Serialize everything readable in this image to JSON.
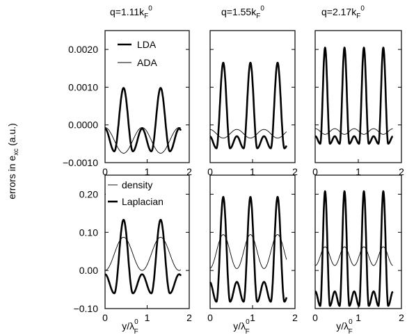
{
  "figure": {
    "ylabel": "errors in e",
    "ylabel_sub": "xc",
    "ylabel_unit": " (a.u.)",
    "xlabel_main": "y/λ",
    "xlabel_sup": "0",
    "xlabel_sub": "F"
  },
  "columns": [
    {
      "title": "q=1.11k",
      "sub": "F",
      "sup": "0"
    },
    {
      "title": "q=1.55k",
      "sub": "F",
      "sup": "0"
    },
    {
      "title": "q=2.17k",
      "sub": "F",
      "sup": "0"
    }
  ],
  "chart_data": [
    {
      "type": "line",
      "row": 0,
      "col": 0,
      "xlim": [
        0,
        1.8
      ],
      "ylim": [
        -0.001,
        0.0025
      ],
      "yticks": [
        "0.0020",
        "0.0010",
        "0.0000",
        "−0.0010"
      ],
      "ytick_values": [
        0.002,
        0.001,
        0.0,
        -0.001
      ],
      "xticks": [
        "0",
        "1",
        "2"
      ],
      "legend": {
        "position": "top-right",
        "entries": [
          "LDA",
          "ADA"
        ]
      },
      "series": [
        {
          "name": "LDA",
          "style": "thick",
          "y0": -5e-05,
          "peaks": [
            {
              "x": 0.44,
              "y": 0.00098
            },
            {
              "x": 1.32,
              "y": 0.00098
            }
          ],
          "troughs": [
            {
              "x": 0.2,
              "y": -0.0007
            },
            {
              "x": 0.68,
              "y": -0.0007
            },
            {
              "x": 1.08,
              "y": -0.0007
            },
            {
              "x": 1.56,
              "y": -0.0007
            }
          ],
          "local_max": [
            {
              "x": 0.88,
              "y": -0.0001
            }
          ]
        },
        {
          "name": "ADA",
          "style": "thin",
          "min_points": [
            {
              "x": 0.44,
              "y": -0.00075
            },
            {
              "x": 1.32,
              "y": -0.00075
            }
          ],
          "max_points": [
            {
              "x": 0.0,
              "y": -0.0001
            },
            {
              "x": 0.88,
              "y": -7e-05
            },
            {
              "x": 1.76,
              "y": -0.0001
            }
          ]
        }
      ]
    },
    {
      "type": "line",
      "row": 0,
      "col": 1,
      "xlim": [
        0,
        1.8
      ],
      "ylim": [
        -0.001,
        0.0025
      ],
      "xticks": [
        "0",
        "1",
        "2"
      ],
      "series": [
        {
          "name": "LDA",
          "style": "thick",
          "peaks": [
            {
              "x": 0.31,
              "y": 0.00165
            },
            {
              "x": 0.95,
              "y": 0.00165
            },
            {
              "x": 1.58,
              "y": 0.00165
            }
          ],
          "trough_y": -0.00062,
          "local_max_y": -0.0003
        },
        {
          "name": "ADA",
          "style": "thin",
          "range": [
            -0.00035,
            -0.00012
          ]
        }
      ]
    },
    {
      "type": "line",
      "row": 0,
      "col": 2,
      "xlim": [
        0,
        1.8
      ],
      "ylim": [
        -0.001,
        0.0025
      ],
      "xticks": [
        "0",
        "1",
        "2"
      ],
      "series": [
        {
          "name": "LDA",
          "style": "thick",
          "peaks": [
            {
              "x": 0.23,
              "y": 0.00205
            },
            {
              "x": 0.68,
              "y": 0.00205
            },
            {
              "x": 1.14,
              "y": 0.00205
            },
            {
              "x": 1.6,
              "y": 0.00205
            }
          ],
          "trough_y": -0.0005,
          "local_max_y": -0.0003
        },
        {
          "name": "ADA",
          "style": "thin",
          "range": [
            -0.00025,
            -0.0001
          ]
        }
      ]
    },
    {
      "type": "line",
      "row": 1,
      "col": 0,
      "xlim": [
        0,
        1.8
      ],
      "ylim": [
        -0.1,
        0.25
      ],
      "yticks": [
        "0.20",
        "0.10",
        "0.00",
        "−0.10"
      ],
      "ytick_values": [
        0.2,
        0.1,
        0.0,
        -0.1
      ],
      "xticks": [
        "0",
        "1",
        "2"
      ],
      "legend": {
        "position": "top-left",
        "entries": [
          "density",
          "Laplacian"
        ]
      },
      "series": [
        {
          "name": "Laplacian",
          "style": "thick",
          "peaks": [
            {
              "x": 0.44,
              "y": 0.133
            },
            {
              "x": 1.32,
              "y": 0.133
            }
          ],
          "trough_y": -0.06,
          "local_max": [
            {
              "x": 0.88,
              "y": -0.01
            }
          ]
        },
        {
          "name": "density",
          "style": "thin",
          "max_y": 0.087,
          "min_y": 0.0
        }
      ]
    },
    {
      "type": "line",
      "row": 1,
      "col": 1,
      "xlim": [
        0,
        1.8
      ],
      "ylim": [
        -0.1,
        0.25
      ],
      "xticks": [
        "0",
        "1",
        "2"
      ],
      "series": [
        {
          "name": "Laplacian",
          "style": "thick",
          "peaks": [
            {
              "x": 0.31,
              "y": 0.193
            },
            {
              "x": 0.95,
              "y": 0.193
            },
            {
              "x": 1.58,
              "y": 0.193
            }
          ],
          "trough_y": -0.082,
          "local_max_y": -0.03
        },
        {
          "name": "density",
          "style": "thin",
          "max_y": 0.094,
          "min_y": 0.005
        }
      ]
    },
    {
      "type": "line",
      "row": 1,
      "col": 2,
      "xlim": [
        0,
        1.8
      ],
      "ylim": [
        -0.1,
        0.25
      ],
      "xticks": [
        "0",
        "1",
        "2"
      ],
      "series": [
        {
          "name": "Laplacian",
          "style": "thick",
          "peaks": [
            {
              "x": 0.23,
              "y": 0.208
            },
            {
              "x": 0.68,
              "y": 0.208
            },
            {
              "x": 1.14,
              "y": 0.208
            },
            {
              "x": 1.6,
              "y": 0.208
            }
          ],
          "trough_y": -0.093,
          "local_max_y": -0.055
        },
        {
          "name": "density",
          "style": "thin",
          "max_y": 0.062,
          "min_y": 0.013
        }
      ]
    }
  ]
}
